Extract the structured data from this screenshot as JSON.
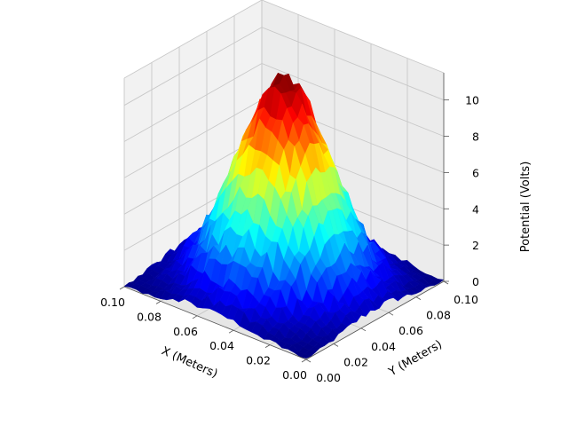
{
  "chart_data": {
    "type": "surface3d",
    "title": "",
    "xlabel": "X (Meters)",
    "ylabel": "Y (Meters)",
    "zlabel": "Potential (Volts)",
    "xlim": [
      0,
      0.1
    ],
    "ylim": [
      0,
      0.1
    ],
    "zlim": [
      0,
      11.5
    ],
    "x_ticks": [
      "0.00",
      "0.02",
      "0.04",
      "0.06",
      "0.08",
      "0.10"
    ],
    "y_ticks": [
      "0.00",
      "0.02",
      "0.04",
      "0.06",
      "0.08",
      "0.10"
    ],
    "z_ticks": [
      "0",
      "2",
      "4",
      "6",
      "8",
      "10"
    ],
    "x_tick_values": [
      0,
      0.02,
      0.04,
      0.06,
      0.08,
      0.1
    ],
    "y_tick_values": [
      0,
      0.02,
      0.04,
      0.06,
      0.08,
      0.1
    ],
    "z_tick_values": [
      0,
      2,
      4,
      6,
      8,
      10
    ],
    "colormap": "jet",
    "grid": true,
    "surface": {
      "description_of_shape": "noisy peak centered at domain center",
      "peak_value": 11.3,
      "peak_x": 0.05,
      "peak_y": 0.05,
      "base_value": 0.0,
      "gaussian_sigma": 0.021,
      "noise_amplitude": 0.45
    }
  }
}
